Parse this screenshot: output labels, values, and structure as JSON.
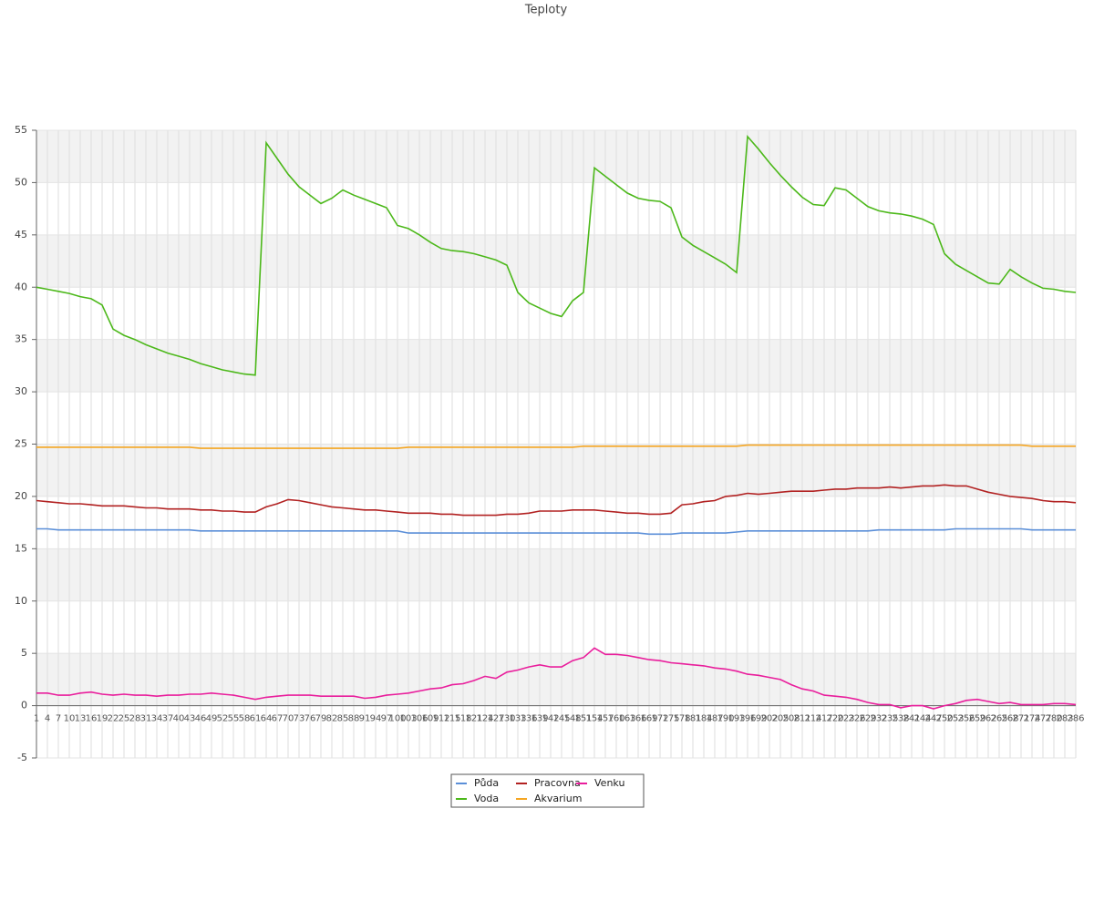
{
  "chart_data": {
    "type": "line",
    "title": "Teploty",
    "categories": [
      "1",
      "4",
      "7",
      "10",
      "13",
      "16",
      "19",
      "22",
      "25",
      "28",
      "31",
      "34",
      "37",
      "40",
      "43",
      "46",
      "49",
      "52",
      "55",
      "58",
      "61",
      "64",
      "67",
      "70",
      "73",
      "76",
      "79",
      "82",
      "85",
      "88",
      "91",
      "94",
      "97",
      "100",
      "103",
      "106",
      "109",
      "112",
      "115",
      "118",
      "121",
      "124",
      "127",
      "130",
      "133",
      "136",
      "139",
      "142",
      "145",
      "148",
      "151",
      "154",
      "157",
      "160",
      "163",
      "166",
      "169",
      "172",
      "175",
      "178",
      "181",
      "184",
      "187",
      "190",
      "193",
      "196",
      "199",
      "202",
      "205",
      "208",
      "211",
      "214",
      "217",
      "220",
      "223",
      "226",
      "229",
      "232",
      "235",
      "238",
      "241",
      "244",
      "247",
      "250",
      "253",
      "256",
      "259",
      "262",
      "265",
      "268",
      "271",
      "274",
      "277",
      "280",
      "283",
      "286"
    ],
    "ylim": [
      -5,
      55
    ],
    "yticks": [
      -5,
      0,
      5,
      10,
      15,
      20,
      25,
      30,
      35,
      40,
      45,
      50,
      55
    ],
    "grid": true,
    "legend": "bottom",
    "series": [
      {
        "name": "Půda",
        "color": "#5b8fd8",
        "values": [
          16.9,
          16.9,
          16.8,
          16.8,
          16.8,
          16.8,
          16.8,
          16.8,
          16.8,
          16.8,
          16.8,
          16.8,
          16.8,
          16.8,
          16.8,
          16.7,
          16.7,
          16.7,
          16.7,
          16.7,
          16.7,
          16.7,
          16.7,
          16.7,
          16.7,
          16.7,
          16.7,
          16.7,
          16.7,
          16.7,
          16.7,
          16.7,
          16.7,
          16.7,
          16.5,
          16.5,
          16.5,
          16.5,
          16.5,
          16.5,
          16.5,
          16.5,
          16.5,
          16.5,
          16.5,
          16.5,
          16.5,
          16.5,
          16.5,
          16.5,
          16.5,
          16.5,
          16.5,
          16.5,
          16.5,
          16.5,
          16.4,
          16.4,
          16.4,
          16.5,
          16.5,
          16.5,
          16.5,
          16.5,
          16.6,
          16.7,
          16.7,
          16.7,
          16.7,
          16.7,
          16.7,
          16.7,
          16.7,
          16.7,
          16.7,
          16.7,
          16.7,
          16.8,
          16.8,
          16.8,
          16.8,
          16.8,
          16.8,
          16.8,
          16.9,
          16.9,
          16.9,
          16.9,
          16.9,
          16.9,
          16.9,
          16.8,
          16.8,
          16.8,
          16.8,
          16.8
        ]
      },
      {
        "name": "Voda",
        "color": "#4cb81a",
        "values": [
          40.0,
          39.8,
          39.6,
          39.4,
          39.1,
          38.9,
          38.3,
          36.0,
          35.4,
          35.0,
          34.5,
          34.1,
          33.7,
          33.4,
          33.1,
          32.7,
          32.4,
          32.1,
          31.9,
          31.7,
          31.6,
          53.8,
          52.3,
          50.8,
          49.6,
          48.8,
          48.0,
          48.5,
          49.3,
          48.8,
          48.4,
          48.0,
          47.6,
          45.9,
          45.6,
          45.0,
          44.3,
          43.7,
          43.5,
          43.4,
          43.2,
          42.9,
          42.6,
          42.1,
          39.5,
          38.5,
          38.0,
          37.5,
          37.2,
          38.7,
          39.5,
          51.4,
          50.6,
          49.8,
          49.0,
          48.5,
          48.3,
          48.2,
          47.6,
          44.8,
          44.0,
          43.4,
          42.8,
          42.2,
          41.4,
          54.4,
          53.2,
          51.9,
          50.7,
          49.6,
          48.6,
          47.9,
          47.8,
          49.5,
          49.3,
          48.5,
          47.7,
          47.3,
          47.1,
          47.0,
          46.8,
          46.5,
          46.0,
          43.2,
          42.2,
          41.6,
          41.0,
          40.4,
          40.3,
          41.7,
          41.0,
          40.4,
          39.9,
          39.8,
          39.6,
          39.5
        ]
      },
      {
        "name": "Pracovna",
        "color": "#b22222",
        "values": [
          19.6,
          19.5,
          19.4,
          19.3,
          19.3,
          19.2,
          19.1,
          19.1,
          19.1,
          19.0,
          18.9,
          18.9,
          18.8,
          18.8,
          18.8,
          18.7,
          18.7,
          18.6,
          18.6,
          18.5,
          18.5,
          19.0,
          19.3,
          19.7,
          19.6,
          19.4,
          19.2,
          19.0,
          18.9,
          18.8,
          18.7,
          18.7,
          18.6,
          18.5,
          18.4,
          18.4,
          18.4,
          18.3,
          18.3,
          18.2,
          18.2,
          18.2,
          18.2,
          18.3,
          18.3,
          18.4,
          18.6,
          18.6,
          18.6,
          18.7,
          18.7,
          18.7,
          18.6,
          18.5,
          18.4,
          18.4,
          18.3,
          18.3,
          18.4,
          19.2,
          19.3,
          19.5,
          19.6,
          20.0,
          20.1,
          20.3,
          20.2,
          20.3,
          20.4,
          20.5,
          20.5,
          20.5,
          20.6,
          20.7,
          20.7,
          20.8,
          20.8,
          20.8,
          20.9,
          20.8,
          20.9,
          21.0,
          21.0,
          21.1,
          21.0,
          21.0,
          20.7,
          20.4,
          20.2,
          20.0,
          19.9,
          19.8,
          19.6,
          19.5,
          19.5,
          19.4
        ]
      },
      {
        "name": "Akvarium",
        "color": "#f5a623",
        "values": [
          24.7,
          24.7,
          24.7,
          24.7,
          24.7,
          24.7,
          24.7,
          24.7,
          24.7,
          24.7,
          24.7,
          24.7,
          24.7,
          24.7,
          24.7,
          24.6,
          24.6,
          24.6,
          24.6,
          24.6,
          24.6,
          24.6,
          24.6,
          24.6,
          24.6,
          24.6,
          24.6,
          24.6,
          24.6,
          24.6,
          24.6,
          24.6,
          24.6,
          24.6,
          24.7,
          24.7,
          24.7,
          24.7,
          24.7,
          24.7,
          24.7,
          24.7,
          24.7,
          24.7,
          24.7,
          24.7,
          24.7,
          24.7,
          24.7,
          24.7,
          24.8,
          24.8,
          24.8,
          24.8,
          24.8,
          24.8,
          24.8,
          24.8,
          24.8,
          24.8,
          24.8,
          24.8,
          24.8,
          24.8,
          24.8,
          24.9,
          24.9,
          24.9,
          24.9,
          24.9,
          24.9,
          24.9,
          24.9,
          24.9,
          24.9,
          24.9,
          24.9,
          24.9,
          24.9,
          24.9,
          24.9,
          24.9,
          24.9,
          24.9,
          24.9,
          24.9,
          24.9,
          24.9,
          24.9,
          24.9,
          24.9,
          24.8,
          24.8,
          24.8,
          24.8,
          24.8
        ]
      },
      {
        "name": "Venku",
        "color": "#e91e9c",
        "values": [
          1.2,
          1.2,
          1.0,
          1.0,
          1.2,
          1.3,
          1.1,
          1.0,
          1.1,
          1.0,
          1.0,
          0.9,
          1.0,
          1.0,
          1.1,
          1.1,
          1.2,
          1.1,
          1.0,
          0.8,
          0.6,
          0.8,
          0.9,
          1.0,
          1.0,
          1.0,
          0.9,
          0.9,
          0.9,
          0.9,
          0.7,
          0.8,
          1.0,
          1.1,
          1.2,
          1.4,
          1.6,
          1.7,
          2.0,
          2.1,
          2.4,
          2.8,
          2.6,
          3.2,
          3.4,
          3.7,
          3.9,
          3.7,
          3.7,
          4.3,
          4.6,
          5.5,
          4.9,
          4.9,
          4.8,
          4.6,
          4.4,
          4.3,
          4.1,
          4.0,
          3.9,
          3.8,
          3.6,
          3.5,
          3.3,
          3.0,
          2.9,
          2.7,
          2.5,
          2.0,
          1.6,
          1.4,
          1.0,
          0.9,
          0.8,
          0.6,
          0.3,
          0.1,
          0.1,
          -0.2,
          0.0,
          0.0,
          -0.3,
          0.0,
          0.2,
          0.5,
          0.6,
          0.4,
          0.2,
          0.3,
          0.1,
          0.1,
          0.1,
          0.2,
          0.2,
          0.1
        ]
      }
    ]
  }
}
